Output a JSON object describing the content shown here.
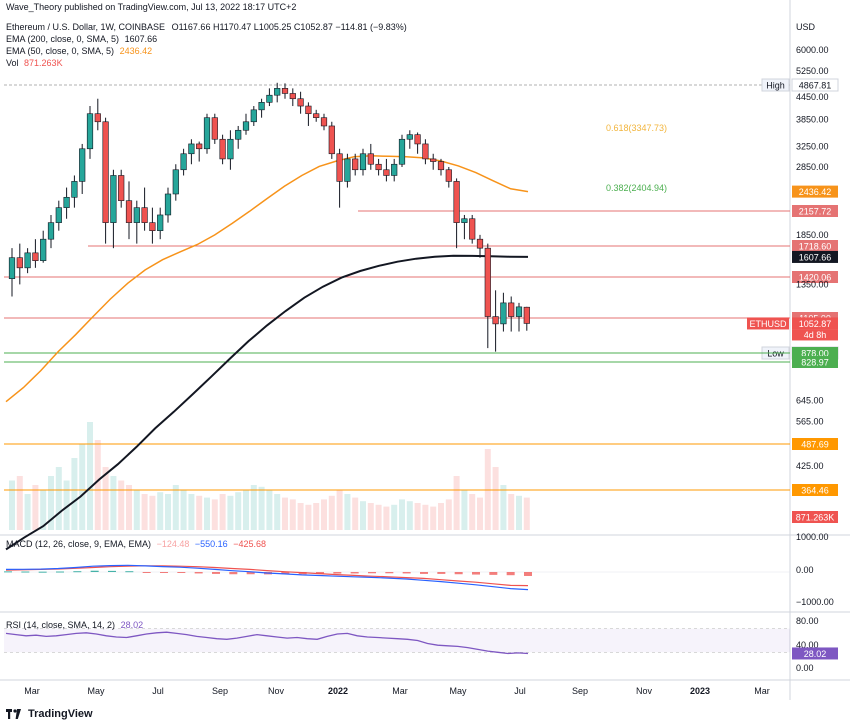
{
  "header": {
    "published": "Wave_Theory published on TradingView.com, Jul 13, 2022 18:17 UTC+2",
    "symbol_line": "Ethereum / U.S. Dollar, 1W, COINBASE",
    "ohlc": "O1167.66  H1170.47  L1005.25  C1052.87  −114.81 (−9.83%)",
    "ema200_label": "EMA (200, close, 0, SMA, 5)",
    "ema200_value": "1607.66",
    "ema50_label": "EMA (50, close, 0, SMA, 5)",
    "ema50_value": "2436.42",
    "vol_label": "Vol",
    "vol_value": "871.263K"
  },
  "macd_header": {
    "label": "MACD (12, 26, close, 9, EMA, EMA)",
    "v1": "−124.48",
    "v2": "−550.16",
    "v3": "−425.68"
  },
  "rsi_header": {
    "label": "RSI (14, close, SMA, 14, 2)",
    "value": "28.02"
  },
  "footer": {
    "brand": "TradingView"
  },
  "colors": {
    "up": "#26a69a",
    "down": "#ef5350",
    "ema50": "#f7931a",
    "ema200": "#131722",
    "hline_red": "#e57373",
    "hline_green": "#4caf50",
    "hline_orange": "#ff9800",
    "rsi": "#7e57c2",
    "macd": "#2962ff",
    "signal": "#ff6d00"
  },
  "chart_data": {
    "type": "candlestick",
    "symbol": "ETHUSD",
    "timeframe": "1W",
    "x_ticks": [
      "Mar",
      "May",
      "Jul",
      "Sep",
      "Nov",
      "2022",
      "Mar",
      "May",
      "Jul",
      "Sep",
      "Nov",
      "2023",
      "Mar"
    ],
    "y_unit": "USD",
    "y_scale": "log",
    "y_ticks": [
      "6000.00",
      "5250.00",
      "4450.00",
      "3850.00",
      "3250.00",
      "2850.00",
      "1850.00",
      "1350.00",
      "645.00",
      "565.00",
      "425.00"
    ],
    "ohlc_last": {
      "open": 1167.66,
      "high": 1170.47,
      "low": 1005.25,
      "close": 1052.87
    },
    "candles": [
      [
        1400,
        1700,
        1250,
        1600
      ],
      [
        1600,
        1750,
        1350,
        1500
      ],
      [
        1500,
        1700,
        1450,
        1650
      ],
      [
        1650,
        1800,
        1500,
        1570
      ],
      [
        1570,
        1900,
        1550,
        1800
      ],
      [
        1800,
        2100,
        1700,
        2000
      ],
      [
        2000,
        2300,
        1900,
        2200
      ],
      [
        2200,
        2500,
        2050,
        2350
      ],
      [
        2350,
        2700,
        2200,
        2600
      ],
      [
        2600,
        3300,
        2400,
        3200
      ],
      [
        3200,
        4200,
        3000,
        4000
      ],
      [
        4000,
        4400,
        3600,
        3800
      ],
      [
        3800,
        3900,
        1750,
        2000
      ],
      [
        2000,
        2800,
        1700,
        2700
      ],
      [
        2700,
        2800,
        2200,
        2300
      ],
      [
        2300,
        2600,
        1800,
        2000
      ],
      [
        2000,
        2300,
        1750,
        2200
      ],
      [
        2200,
        2500,
        1900,
        2000
      ],
      [
        2000,
        2200,
        1750,
        1900
      ],
      [
        1900,
        2200,
        1800,
        2100
      ],
      [
        2100,
        2500,
        2000,
        2400
      ],
      [
        2400,
        2900,
        2300,
        2800
      ],
      [
        2800,
        3200,
        2700,
        3100
      ],
      [
        3100,
        3400,
        2900,
        3300
      ],
      [
        3300,
        3350,
        2950,
        3200
      ],
      [
        3200,
        4000,
        3100,
        3900
      ],
      [
        3900,
        4000,
        3300,
        3400
      ],
      [
        3400,
        3500,
        2900,
        3000
      ],
      [
        3000,
        3600,
        2800,
        3400
      ],
      [
        3400,
        3700,
        3200,
        3600
      ],
      [
        3600,
        4000,
        3500,
        3800
      ],
      [
        3800,
        4200,
        3700,
        4100
      ],
      [
        4100,
        4400,
        3900,
        4300
      ],
      [
        4300,
        4700,
        4200,
        4500
      ],
      [
        4500,
        4870,
        4300,
        4700
      ],
      [
        4700,
        4850,
        4400,
        4550
      ],
      [
        4550,
        4700,
        4200,
        4400
      ],
      [
        4400,
        4600,
        4000,
        4200
      ],
      [
        4200,
        4300,
        3700,
        4000
      ],
      [
        4000,
        4100,
        3800,
        3900
      ],
      [
        3900,
        4000,
        3600,
        3700
      ],
      [
        3700,
        3800,
        3000,
        3100
      ],
      [
        3100,
        3200,
        2200,
        2600
      ],
      [
        2600,
        3100,
        2500,
        3000
      ],
      [
        3000,
        3100,
        2700,
        2800
      ],
      [
        2800,
        3200,
        2700,
        3100
      ],
      [
        3100,
        3300,
        2800,
        2900
      ],
      [
        2900,
        3000,
        2700,
        2800
      ],
      [
        2800,
        3000,
        2600,
        2700
      ],
      [
        2700,
        3000,
        2600,
        2900
      ],
      [
        2900,
        3500,
        2850,
        3400
      ],
      [
        3400,
        3600,
        3200,
        3500
      ],
      [
        3500,
        3550,
        3100,
        3300
      ],
      [
        3300,
        3400,
        2900,
        3000
      ],
      [
        3000,
        3100,
        2800,
        2950
      ],
      [
        2950,
        3000,
        2700,
        2800
      ],
      [
        2800,
        2850,
        2500,
        2600
      ],
      [
        2600,
        2650,
        1700,
        2000
      ],
      [
        2000,
        2100,
        1800,
        2050
      ],
      [
        2050,
        2100,
        1750,
        1800
      ],
      [
        1800,
        1850,
        1600,
        1700
      ],
      [
        1700,
        1750,
        900,
        1100
      ],
      [
        1100,
        1300,
        880,
        1050
      ],
      [
        1050,
        1280,
        1000,
        1200
      ],
      [
        1200,
        1250,
        1000,
        1100
      ],
      [
        1100,
        1200,
        1000,
        1170
      ],
      [
        1167.66,
        1170.47,
        1005.25,
        1052.87
      ]
    ],
    "ema50": [
      640,
      700,
      780,
      880,
      980,
      1100,
      1230,
      1360,
      1480,
      1580,
      1660,
      1740,
      1850,
      1990,
      2150,
      2330,
      2520,
      2700,
      2860,
      2960,
      3040,
      3060,
      3050,
      3040,
      3020,
      2960,
      2870,
      2750,
      2610,
      2480,
      2436.42
    ],
    "ema200": [
      250,
      270,
      290,
      320,
      350,
      390,
      430,
      480,
      540,
      600,
      670,
      750,
      840,
      940,
      1040,
      1140,
      1240,
      1330,
      1410,
      1470,
      1520,
      1560,
      1590,
      1610,
      1620,
      1618,
      1614,
      1610,
      1607.66
    ],
    "horizontal_levels": [
      {
        "label": "High",
        "value": "4867.81",
        "color": "#b0b0b0"
      },
      {
        "label": "",
        "value": "2157.72",
        "color": "#e57373"
      },
      {
        "label": "",
        "value": "1718.60",
        "color": "#e57373"
      },
      {
        "label": "",
        "value": "1420.06",
        "color": "#e57373"
      },
      {
        "label": "",
        "value": "1105.00",
        "color": "#e57373"
      },
      {
        "label": "Low",
        "value": "879.80",
        "color": "#b0b0b0"
      },
      {
        "label": "",
        "value": "878.00",
        "color": "#4caf50"
      },
      {
        "label": "",
        "value": "828.97",
        "color": "#4caf50"
      },
      {
        "label": "",
        "value": "487.69",
        "color": "#ff9800"
      },
      {
        "label": "",
        "value": "364.46",
        "color": "#ff9800"
      }
    ],
    "fib_labels": [
      {
        "text": "0.618(3347.73)",
        "color": "#f2b53d"
      },
      {
        "text": "0.382(2404.94)",
        "color": "#4caf50"
      }
    ],
    "price_tags": [
      {
        "value": "2436.42",
        "bg": "#f7931a",
        "fg": "#ffffff"
      },
      {
        "value": "1607.66",
        "bg": "#131722",
        "fg": "#ffffff"
      },
      {
        "value": "1052.87",
        "bg": "#ef5350",
        "fg": "#ffffff"
      }
    ],
    "eth_tag": {
      "symbol": "ETHUSD",
      "countdown": "4d 8h"
    },
    "volume_label": "871.263K",
    "macd_axis": [
      "1000.00",
      "0.00",
      "−1000.00"
    ],
    "rsi_axis": [
      "80.00",
      "40.00",
      "0.00"
    ],
    "rsi_value": "28.02",
    "rsi_series": [
      62,
      60,
      58,
      59,
      57,
      58,
      60,
      62,
      63,
      61,
      58,
      56,
      55,
      58,
      61,
      63,
      64,
      62,
      60,
      57,
      55,
      53,
      52,
      54,
      57,
      60,
      58,
      56,
      54,
      55,
      53,
      52,
      57,
      61,
      62,
      58,
      56,
      55,
      54,
      53,
      52,
      50,
      45,
      42,
      41,
      40,
      38,
      35,
      32,
      30,
      28,
      29,
      28.02
    ],
    "macd_series": [
      80,
      85,
      90,
      110,
      140,
      180,
      200,
      210,
      190,
      170,
      150,
      120,
      80,
      40,
      10,
      -30,
      -60,
      -90,
      -110,
      -130,
      -150,
      -170,
      -190,
      -220,
      -260,
      -300,
      -350,
      -400,
      -460,
      -520,
      -550.16
    ],
    "signal_series": [
      60,
      70,
      80,
      95,
      115,
      140,
      165,
      185,
      195,
      190,
      180,
      165,
      140,
      110,
      80,
      45,
      10,
      -20,
      -50,
      -80,
      -105,
      -130,
      -150,
      -175,
      -200,
      -240,
      -280,
      -320,
      -370,
      -420,
      -425.68
    ],
    "macd_hist": [
      20,
      15,
      10,
      15,
      25,
      40,
      35,
      25,
      -5,
      -20,
      -30,
      -45,
      -60,
      -70,
      -70,
      -75,
      -70,
      -70,
      -60,
      -50,
      -45,
      -40,
      -40,
      -45,
      -60,
      -60,
      -70,
      -80,
      -90,
      -100,
      -124.48
    ]
  }
}
